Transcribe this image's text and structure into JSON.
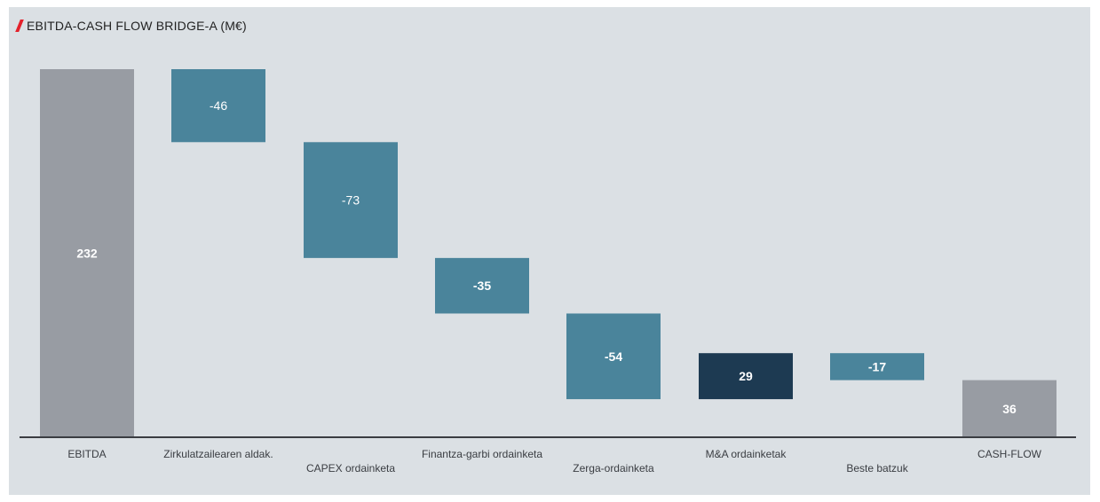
{
  "chart_data": {
    "type": "waterfall",
    "title": "EBITDA-CASH FLOW BRIDGE-A (M€)",
    "ylim": [
      0,
      232
    ],
    "colors": {
      "total": "#989ca3",
      "negative": "#4a849b",
      "positive": "#1d3a52",
      "accent": "#e4212b",
      "axis": "#3a3d42"
    },
    "items": [
      {
        "label": "EBITDA",
        "value": 232,
        "value_label": "232",
        "kind": "total"
      },
      {
        "label": "Zirkulatzailearen aldak.",
        "value": -46,
        "value_label": "-46",
        "kind": "delta"
      },
      {
        "label": "CAPEX ordainketa",
        "value": -73,
        "value_label": "-73",
        "kind": "delta"
      },
      {
        "label": "Finantza-garbi ordainketa",
        "value": -35,
        "value_label": "-35",
        "kind": "delta"
      },
      {
        "label": "Zerga-ordainketa",
        "value": -54,
        "value_label": "-54",
        "kind": "delta"
      },
      {
        "label": "M&A ordainketak",
        "value": 29,
        "value_label": "29",
        "kind": "delta"
      },
      {
        "label": "Beste batzuk",
        "value": -17,
        "value_label": "-17",
        "kind": "delta"
      },
      {
        "label": "CASH-FLOW",
        "value": 36,
        "value_label": "36",
        "kind": "total"
      }
    ]
  }
}
